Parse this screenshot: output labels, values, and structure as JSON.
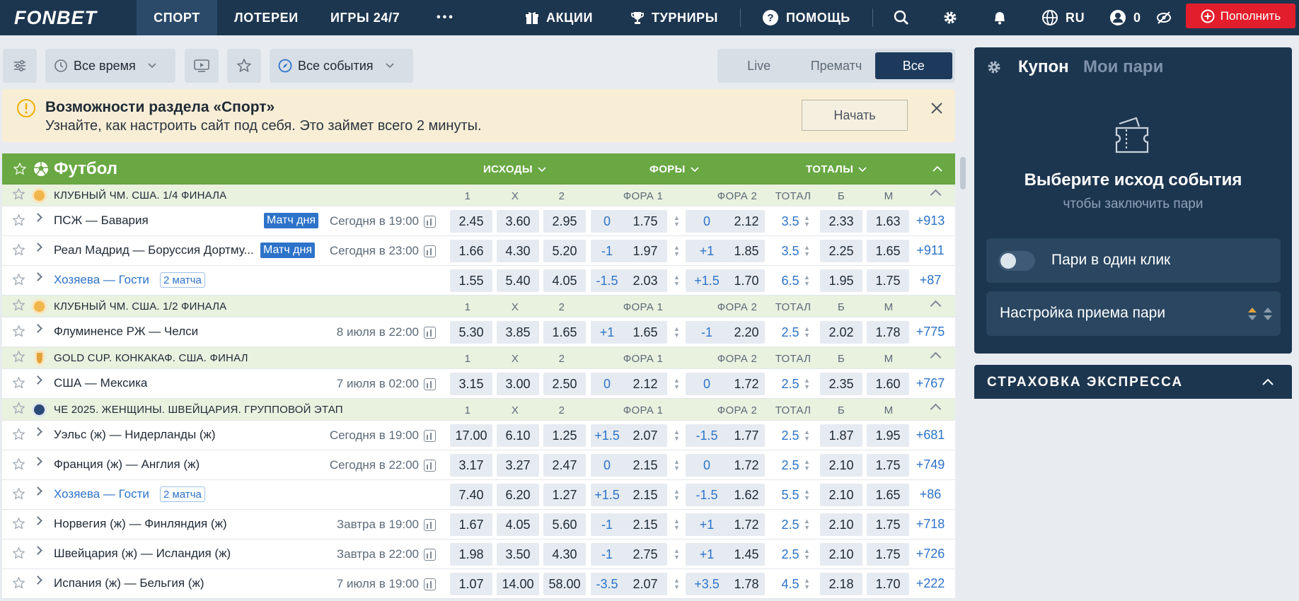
{
  "brand": "FONBET",
  "nav": {
    "items": [
      "СПОРТ",
      "ЛОТЕРЕИ",
      "ИГРЫ 24/7"
    ],
    "more": "•••",
    "promo": "АКЦИИ",
    "tournaments": "ТУРНИРЫ",
    "help": "ПОМОЩЬ",
    "lang": "RU",
    "balance": "0",
    "deposit": "Пополнить"
  },
  "toolbar": {
    "period": "Все время",
    "events": "Все события",
    "segments": [
      "Live",
      "Прематч",
      "Все"
    ]
  },
  "banner": {
    "title": "Возможности раздела «Спорт»",
    "text": "Узнайте, как настроить сайт под себя. Это займет всего 2 минуты.",
    "button": "Начать"
  },
  "sport": {
    "title": "Футбол",
    "groups": [
      "ИСХОДЫ",
      "ФОРЫ",
      "ТОТАЛЫ"
    ]
  },
  "columns": [
    "1",
    "X",
    "2",
    "ФОРА 1",
    "ФОРА 2",
    "ТОТАЛ",
    "Б",
    "М"
  ],
  "rows": [
    {
      "type": "league",
      "icon": "club",
      "name": "КЛУБНЫЙ ЧМ. США. 1/4 ФИНАЛА"
    },
    {
      "type": "match",
      "name": "ПСЖ — Бавария",
      "badge": "Матч дня",
      "time": "Сегодня в 19:00",
      "odds": [
        "2.45",
        "3.60",
        "2.95"
      ],
      "h1": "0",
      "h1o": "1.75",
      "h2": "0",
      "h2o": "2.12",
      "total": "3.5",
      "over": "2.33",
      "under": "1.63",
      "more": "+913"
    },
    {
      "type": "match",
      "name": "Реал Мадрид — Боруссия Дортму...",
      "badge": "Матч дня",
      "time": "Сегодня в 23:00",
      "odds": [
        "1.66",
        "4.30",
        "5.20"
      ],
      "h1": "-1",
      "h1o": "1.97",
      "h2": "+1",
      "h2o": "1.85",
      "total": "3.5",
      "over": "2.25",
      "under": "1.65",
      "more": "+911"
    },
    {
      "type": "match",
      "link": true,
      "name": "Хозяева — Гости",
      "badge2": "2 матча",
      "time": "",
      "odds": [
        "1.55",
        "5.40",
        "4.05"
      ],
      "h1": "-1.5",
      "h1o": "2.03",
      "h2": "+1.5",
      "h2o": "1.70",
      "total": "6.5",
      "over": "1.95",
      "under": "1.75",
      "more": "+87"
    },
    {
      "type": "league",
      "icon": "club",
      "name": "КЛУБНЫЙ ЧМ. США. 1/2 ФИНАЛА"
    },
    {
      "type": "match",
      "name": "Флуминенсе РЖ — Челси",
      "time": "8 июля в 22:00",
      "odds": [
        "5.30",
        "3.85",
        "1.65"
      ],
      "h1": "+1",
      "h1o": "1.65",
      "h2": "-1",
      "h2o": "2.20",
      "total": "2.5",
      "over": "2.02",
      "under": "1.78",
      "more": "+775"
    },
    {
      "type": "league",
      "icon": "cup",
      "name": "GOLD CUP. КОНКАКАФ. США. ФИНАЛ"
    },
    {
      "type": "match",
      "name": "США — Мексика",
      "time": "7 июля в 02:00",
      "odds": [
        "3.15",
        "3.00",
        "2.50"
      ],
      "h1": "0",
      "h1o": "2.12",
      "h2": "0",
      "h2o": "1.72",
      "total": "2.5",
      "over": "2.35",
      "under": "1.60",
      "more": "+767"
    },
    {
      "type": "league",
      "icon": "ue",
      "name": "ЧЕ 2025. ЖЕНЩИНЫ. ШВЕЙЦАРИЯ. ГРУППОВОЙ ЭТАП"
    },
    {
      "type": "match",
      "name": "Уэльс (ж) — Нидерланды (ж)",
      "time": "Сегодня в 19:00",
      "odds": [
        "17.00",
        "6.10",
        "1.25"
      ],
      "h1": "+1.5",
      "h1o": "2.07",
      "h2": "-1.5",
      "h2o": "1.77",
      "total": "2.5",
      "over": "1.87",
      "under": "1.95",
      "more": "+681"
    },
    {
      "type": "match",
      "name": "Франция (ж) — Англия (ж)",
      "time": "Сегодня в 22:00",
      "odds": [
        "3.17",
        "3.27",
        "2.47"
      ],
      "h1": "0",
      "h1o": "2.15",
      "h2": "0",
      "h2o": "1.72",
      "total": "2.5",
      "over": "2.10",
      "under": "1.75",
      "more": "+749"
    },
    {
      "type": "match",
      "link": true,
      "name": "Хозяева — Гости",
      "badge2": "2 матча",
      "time": "",
      "odds": [
        "7.40",
        "6.20",
        "1.27"
      ],
      "h1": "+1.5",
      "h1o": "2.15",
      "h2": "-1.5",
      "h2o": "1.62",
      "total": "5.5",
      "over": "2.10",
      "under": "1.65",
      "more": "+86"
    },
    {
      "type": "match",
      "name": "Норвегия (ж) — Финляндия (ж)",
      "time": "Завтра в 19:00",
      "odds": [
        "1.67",
        "4.05",
        "5.60"
      ],
      "h1": "-1",
      "h1o": "2.15",
      "h2": "+1",
      "h2o": "1.72",
      "total": "2.5",
      "over": "2.10",
      "under": "1.75",
      "more": "+718"
    },
    {
      "type": "match",
      "name": "Швейцария (ж) — Исландия (ж)",
      "time": "Завтра в 22:00",
      "odds": [
        "1.98",
        "3.50",
        "4.30"
      ],
      "h1": "-1",
      "h1o": "2.75",
      "h2": "+1",
      "h2o": "1.45",
      "total": "2.5",
      "over": "2.10",
      "under": "1.75",
      "more": "+726"
    },
    {
      "type": "match",
      "name": "Испания (ж) — Бельгия (ж)",
      "time": "7 июля в 19:00",
      "odds": [
        "1.07",
        "14.00",
        "58.00"
      ],
      "h1": "-3.5",
      "h1o": "2.07",
      "h2": "+3.5",
      "h2o": "1.78",
      "total": "4.5",
      "over": "2.18",
      "under": "1.70",
      "more": "+222"
    }
  ],
  "coupon": {
    "title": "Купон",
    "tab2": "Мои пари",
    "empty_title": "Выберите исход события",
    "empty_sub": "чтобы заключить пари",
    "oneclick": "Пари в один клик",
    "settings": "Настройка приема пари"
  },
  "insurance": {
    "title": "СТРАХОВКА ЭКСПРЕССА"
  },
  "colors": {
    "nav": "#1d3650",
    "sport": "#69a843",
    "accent": "#2d73c9",
    "deposit": "#e31e2c"
  }
}
